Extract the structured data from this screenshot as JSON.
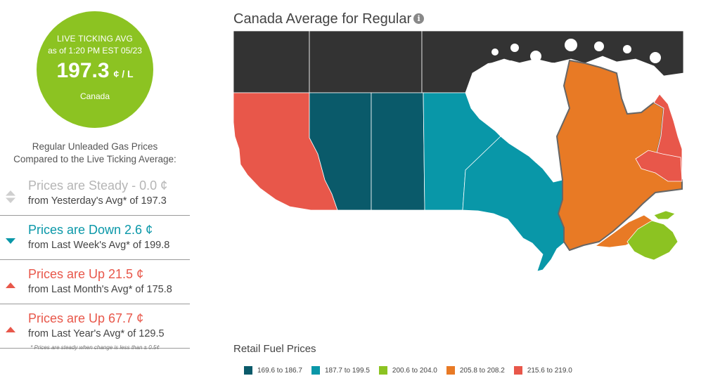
{
  "live_badge": {
    "line1": "LIVE TICKING AVG",
    "line2": "as of 1:20 PM EST 05/23",
    "price": "197.3",
    "unit": "¢ / L",
    "region": "Canada",
    "color": "#8cc322"
  },
  "comparison": {
    "title_line1": "Regular Unleaded Gas Prices",
    "title_line2": "Compared to the Live Ticking Average:",
    "rows": [
      {
        "status": "steady",
        "icon": "steady-arrows-icon",
        "main": "Prices are Steady - 0.0 ¢",
        "sub": "from Yesterday's Avg* of 197.3"
      },
      {
        "status": "down",
        "icon": "down-triangle-icon",
        "main": "Prices are Down 2.6 ¢",
        "sub": "from Last Week's Avg* of 199.8"
      },
      {
        "status": "up",
        "icon": "up-triangle-icon",
        "main": "Prices are Up 21.5 ¢",
        "sub": "from Last Month's Avg* of 175.8"
      },
      {
        "status": "up",
        "icon": "up-triangle-icon",
        "main": "Prices are Up 67.7 ¢",
        "sub": "from Last Year's Avg* of 129.5"
      }
    ],
    "footnote": "* Prices are steady when change is less than ± 0.5¢"
  },
  "map": {
    "title": "Canada Average for Regular",
    "info_icon": "info-icon",
    "no_data_color": "#333333",
    "regions": [
      {
        "name": "British Columbia",
        "bin": 4
      },
      {
        "name": "Alberta",
        "bin": 0
      },
      {
        "name": "Saskatchewan",
        "bin": 0
      },
      {
        "name": "Manitoba",
        "bin": 1
      },
      {
        "name": "Ontario",
        "bin": 1
      },
      {
        "name": "Quebec",
        "bin": 3
      },
      {
        "name": "New Brunswick",
        "bin": 3
      },
      {
        "name": "Nova Scotia",
        "bin": 2
      },
      {
        "name": "Prince Edward Island",
        "bin": 2
      },
      {
        "name": "Newfoundland and Labrador",
        "bin": 4
      },
      {
        "name": "Yukon",
        "bin": null
      },
      {
        "name": "Northwest Territories",
        "bin": null
      },
      {
        "name": "Nunavut",
        "bin": null
      }
    ]
  },
  "legend": {
    "title": "Retail Fuel Prices",
    "items": [
      {
        "label": "169.6 to 186.7",
        "color": "#0a5a6a"
      },
      {
        "label": "187.7 to 199.5",
        "color": "#0997a8"
      },
      {
        "label": "200.6 to 204.0",
        "color": "#8cc322"
      },
      {
        "label": "205.8 to 208.2",
        "color": "#e87a25"
      },
      {
        "label": "215.6 to 219.0",
        "color": "#e8574a"
      }
    ]
  },
  "colors": {
    "steady": "#b5b5b5",
    "down": "#0997a8",
    "up": "#e8574a"
  }
}
